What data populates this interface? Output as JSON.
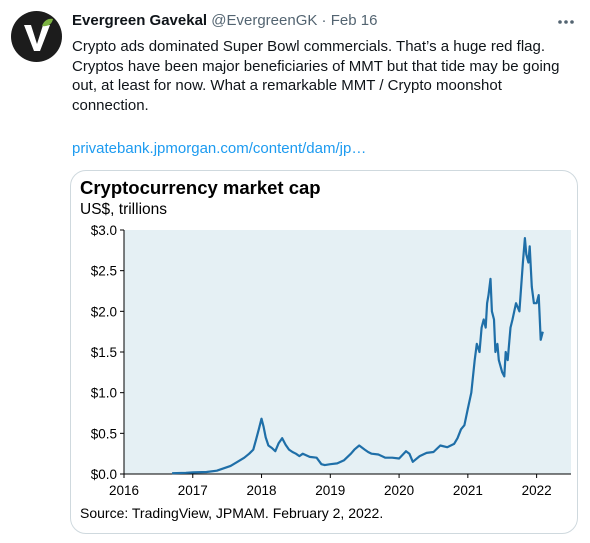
{
  "tweet": {
    "author_name": "Evergreen Gavekal",
    "handle": "@EvergreenGK",
    "separator": "·",
    "date": "Feb 16",
    "text": "Crypto ads dominated Super Bowl commercials.  That’s a huge red flag.  Cryptos have been major beneficiaries of MMT but that tide may be going out, at least for now. What a remarkable MMT / Crypto moonshot connection.",
    "link_text": "privatebank.jpmorgan.com/content/dam/jp…"
  },
  "colors": {
    "link": "#1d9bf0",
    "line": "#1f6fa8",
    "plot_bg": "#e5f0f4",
    "avatar_bg": "#1c1c1c",
    "avatar_leaf": "#7cb342"
  },
  "icons": {
    "avatar": "evergreen-logo",
    "more": "more-horizontal-icon"
  },
  "chart_data": {
    "type": "line",
    "title": "Cryptocurrency market cap",
    "subtitle": "US$, trillions",
    "source": "Source: TradingView, JPMAM. February 2, 2022.",
    "xlabel": "",
    "ylabel": "",
    "xlim": [
      2016,
      2022.5
    ],
    "ylim": [
      0,
      3
    ],
    "xticks": [
      2016,
      2017,
      2018,
      2019,
      2020,
      2021,
      2022
    ],
    "xtick_labels": [
      "2016",
      "2017",
      "2018",
      "2019",
      "2020",
      "2021",
      "2022"
    ],
    "yticks": [
      0,
      0.5,
      1,
      1.5,
      2,
      2.5,
      3
    ],
    "ytick_labels": [
      "$0.0",
      "$0.5",
      "$1.0",
      "$1.5",
      "$2.0",
      "$2.5",
      "$3.0"
    ],
    "grid": false,
    "series": [
      {
        "x": [
          2016.7,
          2016.9,
          2017.0,
          2017.2,
          2017.35,
          2017.45,
          2017.55,
          2017.65,
          2017.75,
          2017.82,
          2017.88,
          2017.92,
          2017.96,
          2018.0,
          2018.03,
          2018.06,
          2018.1,
          2018.15,
          2018.2,
          2018.25,
          2018.3,
          2018.35,
          2018.4,
          2018.45,
          2018.5,
          2018.55,
          2018.6,
          2018.7,
          2018.8,
          2018.87,
          2018.92,
          2019.0,
          2019.1,
          2019.2,
          2019.3,
          2019.35,
          2019.42,
          2019.5,
          2019.55,
          2019.6,
          2019.7,
          2019.8,
          2019.9,
          2020.0,
          2020.1,
          2020.15,
          2020.2,
          2020.3,
          2020.4,
          2020.5,
          2020.6,
          2020.7,
          2020.8,
          2020.85,
          2020.9,
          2020.95,
          2021.0,
          2021.05,
          2021.1,
          2021.13,
          2021.17,
          2021.2,
          2021.23,
          2021.26,
          2021.28,
          2021.3,
          2021.33,
          2021.35,
          2021.38,
          2021.4,
          2021.43,
          2021.45,
          2021.5,
          2021.53,
          2021.55,
          2021.58,
          2021.62,
          2021.65,
          2021.7,
          2021.75,
          2021.8,
          2021.83,
          2021.85,
          2021.88,
          2021.9,
          2021.93,
          2021.96,
          2022.0,
          2022.03,
          2022.06,
          2022.09
        ],
        "y": [
          0.01,
          0.015,
          0.02,
          0.025,
          0.04,
          0.07,
          0.1,
          0.15,
          0.2,
          0.25,
          0.3,
          0.42,
          0.55,
          0.68,
          0.58,
          0.45,
          0.35,
          0.32,
          0.28,
          0.38,
          0.44,
          0.36,
          0.3,
          0.27,
          0.25,
          0.22,
          0.25,
          0.21,
          0.2,
          0.12,
          0.11,
          0.12,
          0.13,
          0.17,
          0.25,
          0.3,
          0.35,
          0.3,
          0.27,
          0.25,
          0.24,
          0.2,
          0.2,
          0.19,
          0.28,
          0.25,
          0.15,
          0.22,
          0.26,
          0.27,
          0.35,
          0.33,
          0.37,
          0.44,
          0.55,
          0.6,
          0.8,
          1.0,
          1.4,
          1.6,
          1.5,
          1.8,
          1.9,
          1.8,
          2.1,
          2.2,
          2.4,
          2.0,
          1.9,
          1.5,
          1.6,
          1.4,
          1.25,
          1.2,
          1.5,
          1.4,
          1.8,
          1.9,
          2.1,
          2.0,
          2.6,
          2.9,
          2.7,
          2.6,
          2.8,
          2.3,
          2.1,
          2.1,
          2.2,
          1.65,
          1.75
        ]
      }
    ]
  }
}
